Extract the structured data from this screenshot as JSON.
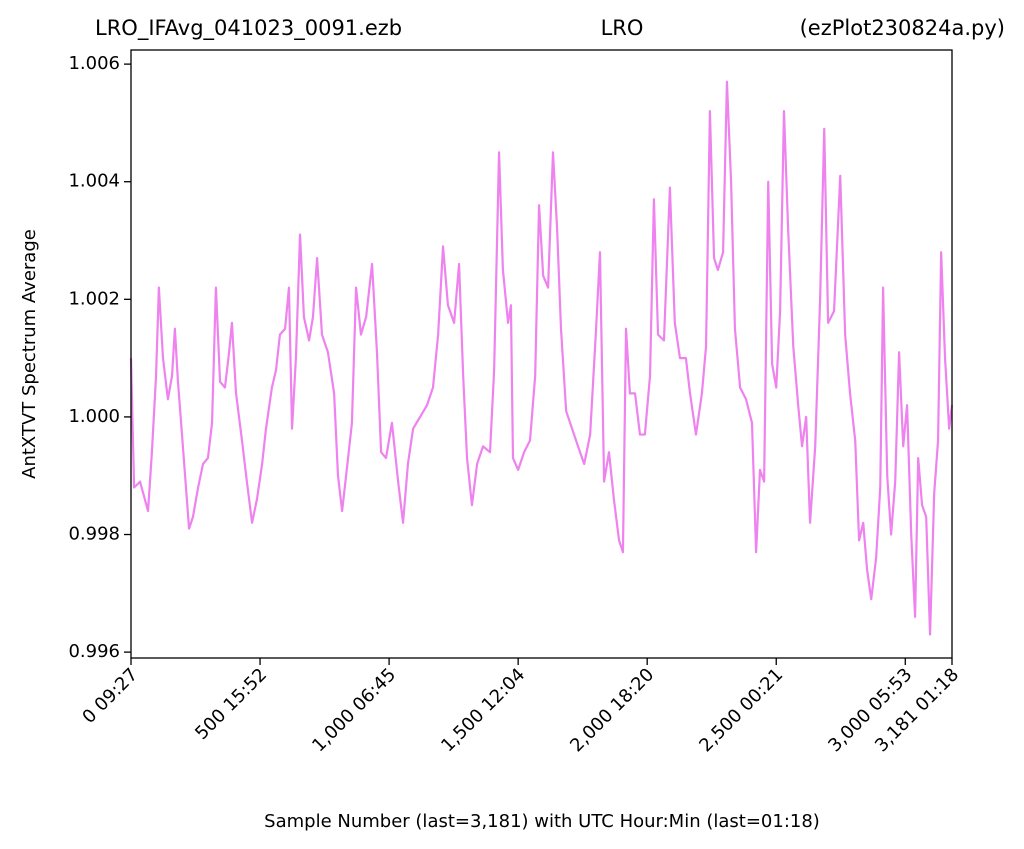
{
  "chart_data": {
    "type": "line",
    "title": {
      "left": "LRO_IFAvg_041023_0091.ezb",
      "center": "LRO",
      "right": "(ezPlot230824a.py)"
    },
    "x_label": "Sample Number (last=3,181) with UTC Hour:Min (last=01:18)",
    "y_label": "AntXTVT Spectrum Average",
    "xlim": [
      0,
      3181
    ],
    "ylim": [
      0.9959,
      1.00624
    ],
    "xticks": [
      {
        "value": 0,
        "label": "0  09:27"
      },
      {
        "value": 500,
        "label": "500  15:52"
      },
      {
        "value": 1000,
        "label": "1,000  06:45"
      },
      {
        "value": 1500,
        "label": "1,500  12:04"
      },
      {
        "value": 2000,
        "label": "2,000  18:20"
      },
      {
        "value": 2500,
        "label": "2,500  00:21"
      },
      {
        "value": 3000,
        "label": "3,000  05:53"
      },
      {
        "value": 3181,
        "label": "3,181  01:18"
      }
    ],
    "yticks": [
      0.996,
      0.998,
      {
        "value": 1,
        "label": "1.000"
      },
      1.002,
      1.004,
      1.006
    ],
    "grid": false,
    "series": [
      {
        "color": "#ee82ee",
        "x": [
          0,
          12,
          35,
          66,
          81,
          97,
          108,
          124,
          143,
          159,
          170,
          182,
          201,
          225,
          240,
          260,
          279,
          298,
          314,
          329,
          345,
          364,
          380,
          391,
          407,
          430,
          449,
          469,
          488,
          508,
          523,
          546,
          562,
          577,
          597,
          612,
          624,
          639,
          655,
          670,
          690,
          705,
          721,
          740,
          763,
          787,
          802,
          818,
          841,
          856,
          872,
          891,
          911,
          934,
          953,
          969,
          988,
          1011,
          1035,
          1054,
          1073,
          1093,
          1120,
          1147,
          1170,
          1190,
          1209,
          1228,
          1252,
          1271,
          1287,
          1302,
          1321,
          1341,
          1364,
          1391,
          1407,
          1426,
          1441,
          1461,
          1472,
          1480,
          1500,
          1523,
          1546,
          1566,
          1581,
          1597,
          1616,
          1635,
          1651,
          1666,
          1686,
          1709,
          1732,
          1756,
          1779,
          1802,
          1817,
          1833,
          1852,
          1871,
          1891,
          1906,
          1918,
          1933,
          1953,
          1972,
          1991,
          2011,
          2026,
          2042,
          2065,
          2088,
          2107,
          2127,
          2150,
          2166,
          2189,
          2212,
          2228,
          2243,
          2259,
          2274,
          2294,
          2309,
          2325,
          2340,
          2360,
          2383,
          2406,
          2422,
          2437,
          2453,
          2469,
          2484,
          2500,
          2515,
          2530,
          2546,
          2566,
          2585,
          2600,
          2616,
          2631,
          2651,
          2670,
          2686,
          2701,
          2724,
          2748,
          2767,
          2786,
          2806,
          2821,
          2837,
          2852,
          2868,
          2887,
          2903,
          2914,
          2930,
          2945,
          2961,
          2976,
          2992,
          3007,
          3023,
          3038,
          3050,
          3065,
          3081,
          3096,
          3112,
          3127,
          3139,
          3154,
          3170,
          3181
        ],
        "values": [
          1.001,
          0.9988,
          0.9989,
          0.9984,
          0.9994,
          1.0007,
          1.0022,
          1.001,
          1.0003,
          1.0007,
          1.0015,
          1.0006,
          0.9995,
          0.9981,
          0.9983,
          0.9988,
          0.9992,
          0.9993,
          0.9999,
          1.0022,
          1.0006,
          1.0005,
          1.0011,
          1.0016,
          1.0004,
          0.9996,
          0.9989,
          0.9982,
          0.9986,
          0.9992,
          0.9998,
          1.0005,
          1.0008,
          1.0014,
          1.0015,
          1.0022,
          0.9998,
          1.001,
          1.0031,
          1.0017,
          1.0013,
          1.0017,
          1.0027,
          1.0014,
          1.0011,
          1.0004,
          0.999,
          0.9984,
          0.9993,
          0.9999,
          1.0022,
          1.0014,
          1.0017,
          1.0026,
          1.0011,
          0.9994,
          0.9993,
          0.9999,
          0.9989,
          0.9982,
          0.9992,
          0.9998,
          1.0,
          1.0002,
          1.0005,
          1.0014,
          1.0029,
          1.0019,
          1.0016,
          1.0026,
          1.0007,
          0.9993,
          0.9985,
          0.9992,
          0.9995,
          0.9994,
          1.0008,
          1.0045,
          1.0025,
          1.0016,
          1.0019,
          0.9993,
          0.9991,
          0.9994,
          0.9996,
          1.0007,
          1.0036,
          1.0024,
          1.0022,
          1.0045,
          1.0032,
          1.0015,
          1.0001,
          0.9998,
          0.9995,
          0.9992,
          0.9997,
          1.0015,
          1.0028,
          0.9989,
          0.9994,
          0.9986,
          0.9979,
          0.9977,
          1.0015,
          1.0004,
          1.0004,
          0.9997,
          0.9997,
          1.0007,
          1.0037,
          1.0014,
          1.0013,
          1.0039,
          1.0016,
          1.001,
          1.001,
          1.0004,
          0.9997,
          1.0004,
          1.0012,
          1.0052,
          1.0027,
          1.0025,
          1.0028,
          1.0057,
          1.004,
          1.0015,
          1.0005,
          1.0003,
          0.9999,
          0.9977,
          0.9991,
          0.9989,
          1.004,
          1.0009,
          1.0005,
          1.0018,
          1.0052,
          1.0032,
          1.0012,
          1.0002,
          0.9995,
          1.0,
          0.9982,
          0.9995,
          1.002,
          1.0049,
          1.0016,
          1.0018,
          1.0041,
          1.0014,
          1.0004,
          0.9996,
          0.9979,
          0.9982,
          0.9974,
          0.9969,
          0.9976,
          0.9988,
          1.0022,
          0.999,
          0.998,
          0.9989,
          1.0011,
          0.9995,
          1.0002,
          0.998,
          0.9966,
          0.9993,
          0.9985,
          0.9983,
          0.9963,
          0.9987,
          0.9996,
          1.0028,
          1.001,
          0.9998,
          1.0002
        ]
      }
    ]
  }
}
